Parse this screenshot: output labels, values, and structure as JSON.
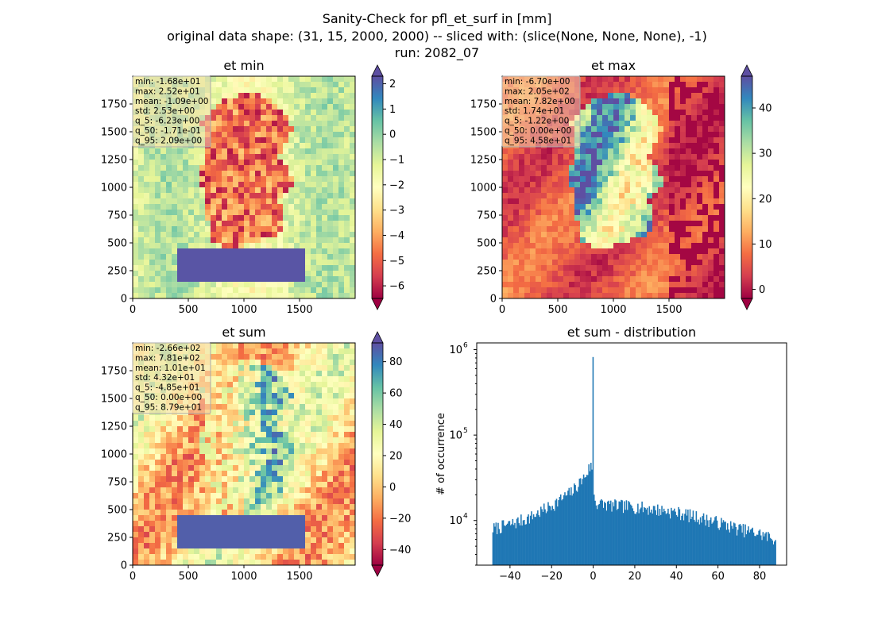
{
  "figure": {
    "title_lines": [
      "Sanity-Check for pfl_et_surf in [mm]",
      "original data shape: (31, 15, 2000, 2000) -- sliced with: (slice(None, None, None), -1)",
      "run: 2082_07"
    ]
  },
  "colors": {
    "spectral_stops": [
      "#9e0142",
      "#d53e4f",
      "#f46d43",
      "#fdae61",
      "#fee08b",
      "#ffffbf",
      "#e6f598",
      "#abdda4",
      "#66c2a5",
      "#3288bd",
      "#5e4fa2"
    ],
    "histogram_bar": "#1f77b4"
  },
  "chart_data": [
    {
      "type": "heatmap",
      "title": "et min",
      "colormap": "Spectral",
      "xlim": [
        0,
        2000
      ],
      "ylim": [
        0,
        2000
      ],
      "xticks": [
        "0",
        "500",
        "1000",
        "1500"
      ],
      "yticks": [
        "0",
        "250",
        "500",
        "750",
        "1000",
        "1250",
        "1500",
        "1750"
      ],
      "color_range": [
        -6.5,
        2.3
      ],
      "colorbar_ticks": [
        "2",
        "1",
        "0",
        "−1",
        "−2",
        "−3",
        "−4",
        "−5",
        "−6"
      ],
      "colorbar_tick_values": [
        2,
        1,
        0,
        -1,
        -2,
        -3,
        -4,
        -5,
        -6
      ],
      "colorbar_extend": "both",
      "stats": [
        "min: -1.68e+01",
        "max: 2.52e+01",
        "mean: -1.09e+00",
        "std: 2.53e+00",
        "q_5: -6.23e+00",
        "q_50: -1.71e-01",
        "q_95: 2.09e+00"
      ]
    },
    {
      "type": "heatmap",
      "title": "et max",
      "colormap": "Spectral",
      "xlim": [
        0,
        2000
      ],
      "ylim": [
        0,
        2000
      ],
      "xticks": [
        "0",
        "500",
        "1000",
        "1500"
      ],
      "yticks": [
        "0",
        "250",
        "500",
        "750",
        "1000",
        "1250",
        "1500",
        "1750"
      ],
      "color_range": [
        -2,
        47
      ],
      "colorbar_ticks": [
        "40",
        "30",
        "20",
        "10",
        "0"
      ],
      "colorbar_tick_values": [
        40,
        30,
        20,
        10,
        0
      ],
      "colorbar_extend": "both",
      "stats": [
        "min: -6.70e+00",
        "max: 2.05e+02",
        "mean: 7.82e+00",
        "std: 1.74e+01",
        "q_5: -1.22e+00",
        "q_50: 0.00e+00",
        "q_95: 4.58e+01"
      ]
    },
    {
      "type": "heatmap",
      "title": "et sum",
      "colormap": "Spectral",
      "xlim": [
        0,
        2000
      ],
      "ylim": [
        0,
        2000
      ],
      "xticks": [
        "0",
        "500",
        "1000",
        "1500"
      ],
      "yticks": [
        "0",
        "250",
        "500",
        "750",
        "1000",
        "1250",
        "1500",
        "1750"
      ],
      "color_range": [
        -50,
        92
      ],
      "colorbar_ticks": [
        "80",
        "60",
        "40",
        "20",
        "0",
        "−20",
        "−40"
      ],
      "colorbar_tick_values": [
        80,
        60,
        40,
        20,
        0,
        -20,
        -40
      ],
      "colorbar_extend": "both",
      "stats": [
        "min: -2.66e+02",
        "max: 7.81e+02",
        "mean: 1.01e+01",
        "std: 4.32e+01",
        "q_5: -4.85e+01",
        "q_50: 0.00e+00",
        "q_95: 8.79e+01"
      ]
    },
    {
      "type": "bar",
      "title": "et sum - distribution",
      "xlabel": "",
      "ylabel": "# of occurrence",
      "yscale": "log",
      "xlim": [
        -56,
        93
      ],
      "ylim": [
        3000,
        1200000
      ],
      "xticks": [
        "−40",
        "−20",
        "0",
        "20",
        "40",
        "60",
        "80"
      ],
      "xtick_values": [
        -40,
        -20,
        0,
        20,
        40,
        60,
        80
      ],
      "yticks": [
        "10",
        "10",
        "10"
      ],
      "ytick_exponents": [
        "4",
        "5",
        "6"
      ],
      "ytick_values": [
        10000,
        100000,
        1000000
      ],
      "bin_edges_range": [
        -48.5,
        87.9
      ],
      "spike": {
        "x": 0,
        "count": 820000
      },
      "profile": [
        {
          "x": -48.5,
          "count": 8000
        },
        {
          "x": -40,
          "count": 9000
        },
        {
          "x": -30,
          "count": 11000
        },
        {
          "x": -20,
          "count": 15000
        },
        {
          "x": -10,
          "count": 22000
        },
        {
          "x": -4,
          "count": 33000
        },
        {
          "x": -1,
          "count": 45000
        },
        {
          "x": 1,
          "count": 16000
        },
        {
          "x": 10,
          "count": 15000
        },
        {
          "x": 20,
          "count": 14500
        },
        {
          "x": 30,
          "count": 13500
        },
        {
          "x": 40,
          "count": 12500
        },
        {
          "x": 50,
          "count": 11000
        },
        {
          "x": 60,
          "count": 9500
        },
        {
          "x": 70,
          "count": 8000
        },
        {
          "x": 80,
          "count": 7000
        },
        {
          "x": 87.9,
          "count": 6000
        }
      ]
    }
  ]
}
